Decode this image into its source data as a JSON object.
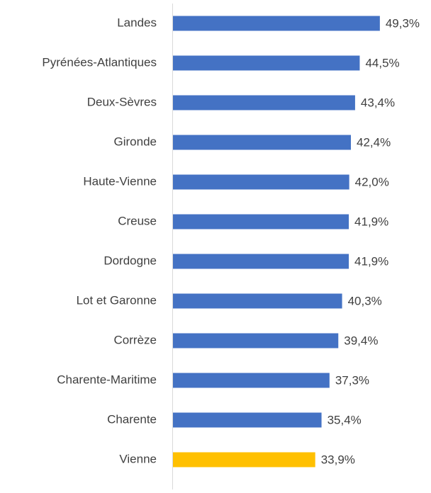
{
  "chart_data": {
    "type": "bar",
    "orientation": "horizontal",
    "categories": [
      "Landes",
      "Pyrénées-Atlantiques",
      "Deux-Sèvres",
      "Gironde",
      "Haute-Vienne",
      "Creuse",
      "Dordogne",
      "Lot et Garonne",
      "Corrèze",
      "Charente-Maritime",
      "Charente",
      "Vienne"
    ],
    "values": [
      49.3,
      44.5,
      43.4,
      42.4,
      42.0,
      41.9,
      41.9,
      40.3,
      39.4,
      37.3,
      35.4,
      33.9
    ],
    "value_labels": [
      "49,3%",
      "44,5%",
      "43,4%",
      "42,4%",
      "42,0%",
      "41,9%",
      "41,9%",
      "40,3%",
      "39,4%",
      "37,3%",
      "35,4%",
      "33,9%"
    ],
    "colors": [
      "#4472c4",
      "#4472c4",
      "#4472c4",
      "#4472c4",
      "#4472c4",
      "#4472c4",
      "#4472c4",
      "#4472c4",
      "#4472c4",
      "#4472c4",
      "#4472c4",
      "#ffc000"
    ]
  }
}
